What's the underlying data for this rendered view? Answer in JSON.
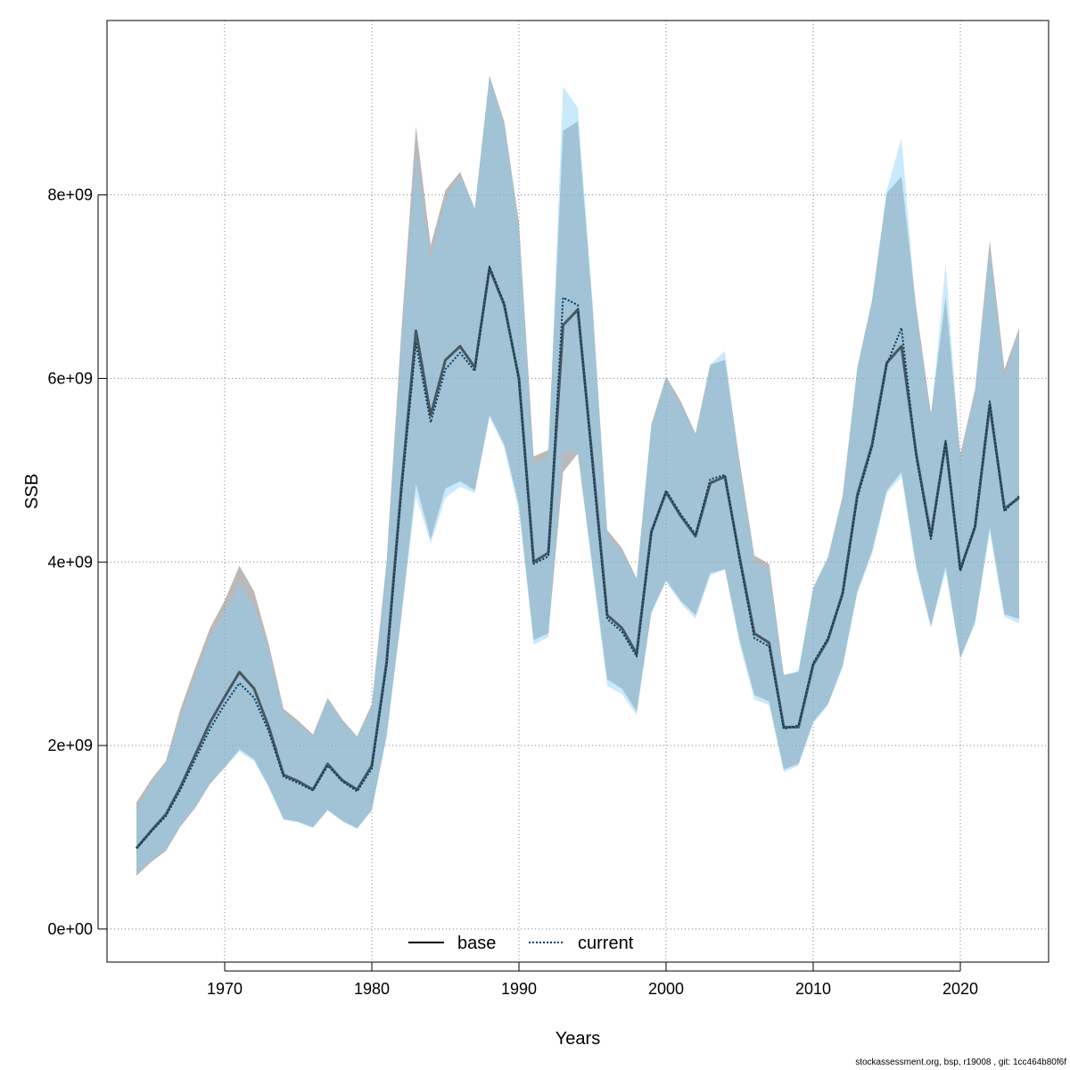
{
  "chart_data": {
    "type": "line",
    "xlabel": "Years",
    "ylabel": "SSB",
    "xlim": [
      1962,
      2026
    ],
    "ylim": [
      -360000000.0,
      9900000000.0
    ],
    "grid": true,
    "legend_position": "bottom-center",
    "x_ticks": [
      1970,
      1980,
      1990,
      2000,
      2010,
      2020
    ],
    "x_tick_labels": [
      "1970",
      "1980",
      "1990",
      "2000",
      "2010",
      "2020"
    ],
    "y_ticks": [
      0,
      2000000000,
      4000000000,
      6000000000,
      8000000000
    ],
    "y_tick_labels": [
      "0e+00",
      "2e+09",
      "4e+09",
      "6e+09",
      "8e+09"
    ],
    "x": [
      1964,
      1965,
      1966,
      1967,
      1968,
      1969,
      1970,
      1971,
      1972,
      1973,
      1974,
      1975,
      1976,
      1977,
      1978,
      1979,
      1980,
      1981,
      1982,
      1983,
      1984,
      1985,
      1986,
      1987,
      1988,
      1989,
      1990,
      1991,
      1992,
      1993,
      1994,
      1995,
      1996,
      1997,
      1998,
      1999,
      2000,
      2001,
      2002,
      2003,
      2004,
      2005,
      2006,
      2007,
      2008,
      2009,
      2010,
      2011,
      2012,
      2013,
      2014,
      2015,
      2016,
      2017,
      2018,
      2019,
      2020,
      2021,
      2022,
      2023,
      2024
    ],
    "series": [
      {
        "name": "base",
        "color": "#000000",
        "band_color": "#808080",
        "values": [
          880000000.0,
          1070000000.0,
          1250000000.0,
          1550000000.0,
          1900000000.0,
          2250000000.0,
          2530000000.0,
          2800000000.0,
          2620000000.0,
          2200000000.0,
          1680000000.0,
          1610000000.0,
          1520000000.0,
          1800000000.0,
          1620000000.0,
          1520000000.0,
          1780000000.0,
          2900000000.0,
          4800000000.0,
          6520000000.0,
          5600000000.0,
          6200000000.0,
          6350000000.0,
          6120000000.0,
          7200000000.0,
          6800000000.0,
          6000000000.0,
          4000000000.0,
          4100000000.0,
          6580000000.0,
          6750000000.0,
          5100000000.0,
          3420000000.0,
          3280000000.0,
          3000000000.0,
          4330000000.0,
          4760000000.0,
          4500000000.0,
          4280000000.0,
          4860000000.0,
          4930000000.0,
          4050000000.0,
          3220000000.0,
          3120000000.0,
          2200000000.0,
          2200000000.0,
          2880000000.0,
          3150000000.0,
          3660000000.0,
          4730000000.0,
          5280000000.0,
          6170000000.0,
          6350000000.0,
          5180000000.0,
          4280000000.0,
          5300000000.0,
          3920000000.0,
          4380000000.0,
          5710000000.0,
          4580000000.0,
          4700000000.0
        ],
        "lower": [
          580000000.0,
          730000000.0,
          850000000.0,
          1120000000.0,
          1320000000.0,
          1580000000.0,
          1760000000.0,
          1960000000.0,
          1850000000.0,
          1550000000.0,
          1200000000.0,
          1170000000.0,
          1110000000.0,
          1300000000.0,
          1180000000.0,
          1100000000.0,
          1300000000.0,
          2100000000.0,
          3400000000.0,
          4850000000.0,
          4250000000.0,
          4800000000.0,
          4880000000.0,
          4780000000.0,
          5600000000.0,
          5280000000.0,
          4620000000.0,
          3150000000.0,
          3220000000.0,
          4980000000.0,
          5180000000.0,
          3950000000.0,
          2720000000.0,
          2620000000.0,
          2370000000.0,
          3450000000.0,
          3800000000.0,
          3580000000.0,
          3420000000.0,
          3880000000.0,
          3920000000.0,
          3150000000.0,
          2550000000.0,
          2480000000.0,
          1740000000.0,
          1800000000.0,
          2260000000.0,
          2450000000.0,
          2870000000.0,
          3680000000.0,
          4120000000.0,
          4780000000.0,
          4980000000.0,
          3960000000.0,
          3300000000.0,
          3950000000.0,
          2950000000.0,
          3350000000.0,
          4380000000.0,
          3430000000.0,
          3380000000.0
        ],
        "upper": [
          1380000000.0,
          1630000000.0,
          1830000000.0,
          2400000000.0,
          2850000000.0,
          3280000000.0,
          3580000000.0,
          3960000000.0,
          3680000000.0,
          3100000000.0,
          2400000000.0,
          2270000000.0,
          2120000000.0,
          2520000000.0,
          2280000000.0,
          2100000000.0,
          2450000000.0,
          4000000000.0,
          6500000000.0,
          8750000000.0,
          7450000000.0,
          8050000000.0,
          8250000000.0,
          7850000000.0,
          9300000000.0,
          8800000000.0,
          7700000000.0,
          5150000000.0,
          5220000000.0,
          8700000000.0,
          8800000000.0,
          6780000000.0,
          4350000000.0,
          4150000000.0,
          3820000000.0,
          5500000000.0,
          6020000000.0,
          5750000000.0,
          5400000000.0,
          6150000000.0,
          6200000000.0,
          5100000000.0,
          4070000000.0,
          3980000000.0,
          2770000000.0,
          2800000000.0,
          3720000000.0,
          4050000000.0,
          4720000000.0,
          6120000000.0,
          6850000000.0,
          8020000000.0,
          8200000000.0,
          6780000000.0,
          5620000000.0,
          6880000000.0,
          5180000000.0,
          5880000000.0,
          7500000000.0,
          6100000000.0,
          6550000000.0
        ]
      },
      {
        "name": "current",
        "color": "#00405e",
        "band_color": "#87cefa",
        "values": [
          880000000.0,
          1060000000.0,
          1230000000.0,
          1520000000.0,
          1850000000.0,
          2180000000.0,
          2450000000.0,
          2680000000.0,
          2520000000.0,
          2150000000.0,
          1660000000.0,
          1590000000.0,
          1510000000.0,
          1780000000.0,
          1610000000.0,
          1500000000.0,
          1750000000.0,
          2880000000.0,
          4750000000.0,
          6380000000.0,
          5520000000.0,
          6100000000.0,
          6280000000.0,
          6080000000.0,
          7220000000.0,
          6820000000.0,
          5980000000.0,
          3980000000.0,
          4060000000.0,
          6880000000.0,
          6800000000.0,
          5050000000.0,
          3380000000.0,
          3240000000.0,
          2970000000.0,
          4320000000.0,
          4780000000.0,
          4520000000.0,
          4300000000.0,
          4900000000.0,
          4950000000.0,
          4020000000.0,
          3170000000.0,
          3080000000.0,
          2180000000.0,
          2220000000.0,
          2900000000.0,
          3170000000.0,
          3640000000.0,
          4700000000.0,
          5250000000.0,
          6150000000.0,
          6550000000.0,
          5150000000.0,
          4250000000.0,
          5320000000.0,
          3900000000.0,
          4400000000.0,
          5750000000.0,
          4550000000.0,
          4720000000.0
        ],
        "lower": [
          600000000.0,
          750000000.0,
          860000000.0,
          1130000000.0,
          1330000000.0,
          1590000000.0,
          1760000000.0,
          1930000000.0,
          1830000000.0,
          1540000000.0,
          1190000000.0,
          1160000000.0,
          1100000000.0,
          1290000000.0,
          1170000000.0,
          1090000000.0,
          1290000000.0,
          2090000000.0,
          3390000000.0,
          4720000000.0,
          4200000000.0,
          4700000000.0,
          4820000000.0,
          4750000000.0,
          5580000000.0,
          5250000000.0,
          4550000000.0,
          3100000000.0,
          3180000000.0,
          5200000000.0,
          5200000000.0,
          3900000000.0,
          2650000000.0,
          2560000000.0,
          2330000000.0,
          3440000000.0,
          3780000000.0,
          3550000000.0,
          3380000000.0,
          3850000000.0,
          3920000000.0,
          3100000000.0,
          2500000000.0,
          2440000000.0,
          1710000000.0,
          1780000000.0,
          2240000000.0,
          2440000000.0,
          2850000000.0,
          3660000000.0,
          4080000000.0,
          4750000000.0,
          4930000000.0,
          3920000000.0,
          3280000000.0,
          3900000000.0,
          2950000000.0,
          3320000000.0,
          4320000000.0,
          3400000000.0,
          3330000000.0
        ],
        "upper": [
          1320000000.0,
          1580000000.0,
          1800000000.0,
          2320000000.0,
          2750000000.0,
          3180000000.0,
          3450000000.0,
          3750000000.0,
          3520000000.0,
          3020000000.0,
          2350000000.0,
          2240000000.0,
          2100000000.0,
          2500000000.0,
          2260000000.0,
          2080000000.0,
          2420000000.0,
          3950000000.0,
          6350000000.0,
          8450000000.0,
          7300000000.0,
          7950000000.0,
          8200000000.0,
          7850000000.0,
          9300000000.0,
          8750000000.0,
          7650000000.0,
          5050000000.0,
          5150000000.0,
          9180000000.0,
          8950000000.0,
          6850000000.0,
          4300000000.0,
          4100000000.0,
          3800000000.0,
          5480000000.0,
          6000000000.0,
          5700000000.0,
          5380000000.0,
          6150000000.0,
          6300000000.0,
          5050000000.0,
          4000000000.0,
          3920000000.0,
          2750000000.0,
          2820000000.0,
          3720000000.0,
          4050000000.0,
          4700000000.0,
          6100000000.0,
          6850000000.0,
          8050000000.0,
          8620000000.0,
          6720000000.0,
          5550000000.0,
          7250000000.0,
          5100000000.0,
          5850000000.0,
          7400000000.0,
          6020000000.0,
          6520000000.0
        ]
      }
    ]
  },
  "legend": {
    "items": [
      {
        "label": "base",
        "style": "solid"
      },
      {
        "label": "current",
        "style": "dotted"
      }
    ]
  },
  "footer": {
    "text": "stockassessment.org, bsp, r19008 , git: 1cc464b80f6f"
  }
}
